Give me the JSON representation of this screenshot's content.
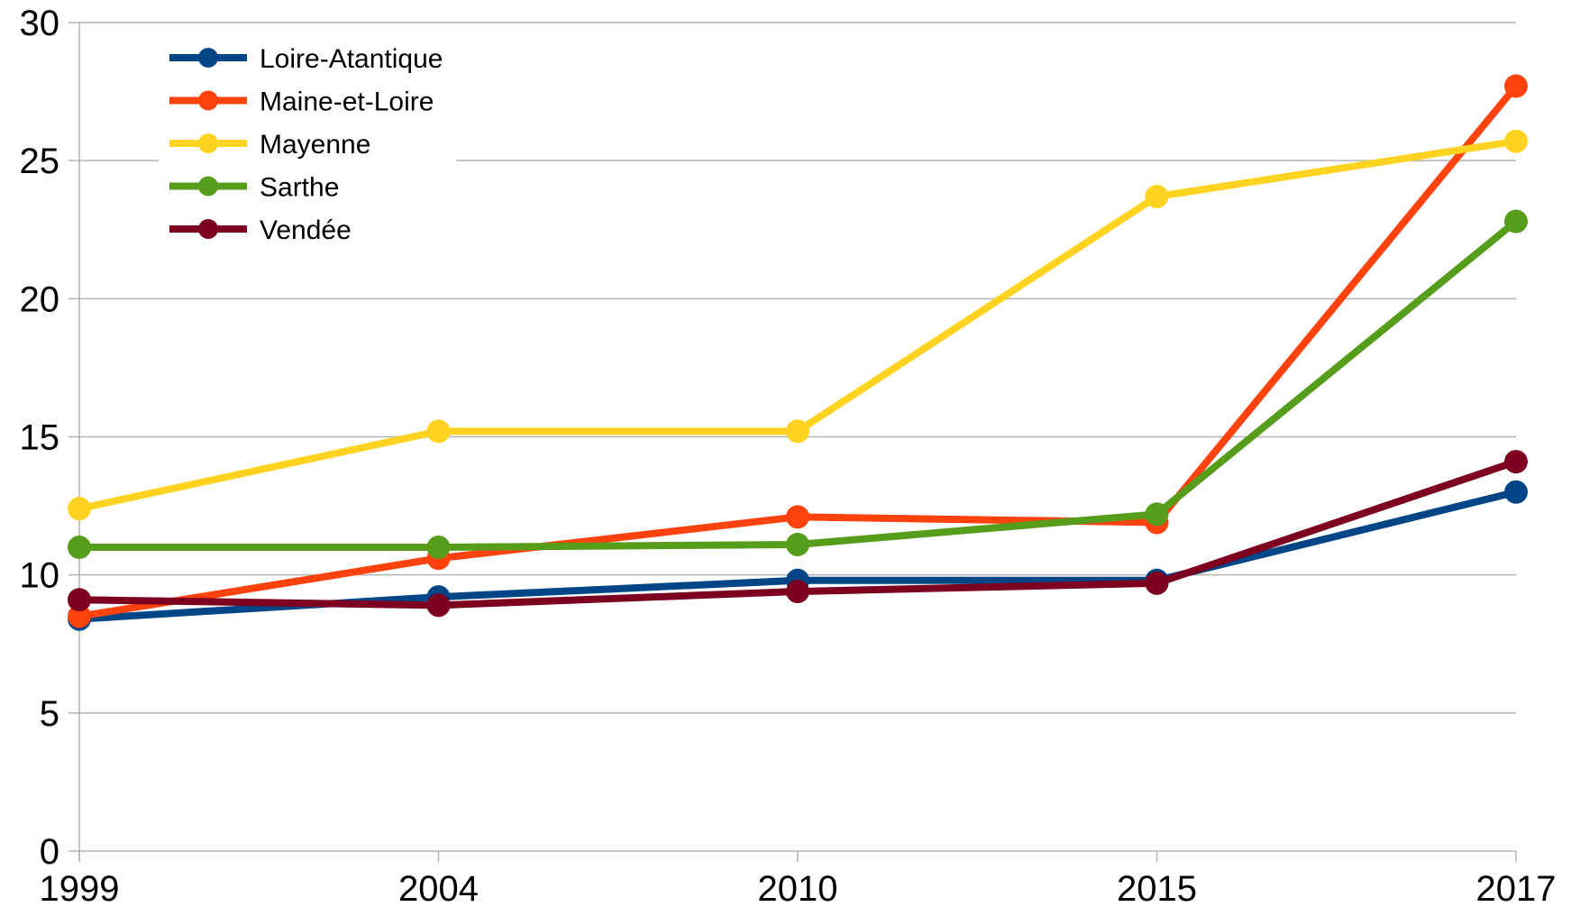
{
  "chart_data": {
    "type": "line",
    "title": "",
    "xlabel": "",
    "ylabel": "",
    "categories": [
      "1999",
      "2004",
      "2010",
      "2015",
      "2017"
    ],
    "ylim": [
      0,
      30
    ],
    "yticks": [
      0,
      5,
      10,
      15,
      20,
      25,
      30
    ],
    "grid": true,
    "legend_position": "top-left",
    "series": [
      {
        "name": "Loire-Atantique",
        "color": "#004586",
        "values": [
          8.4,
          9.2,
          9.8,
          9.8,
          13.0
        ]
      },
      {
        "name": "Maine-et-Loire",
        "color": "#ff420e",
        "values": [
          8.5,
          10.6,
          12.1,
          11.9,
          27.7
        ]
      },
      {
        "name": "Mayenne",
        "color": "#ffd320",
        "values": [
          12.4,
          15.2,
          15.2,
          23.7,
          25.7
        ]
      },
      {
        "name": "Sarthe",
        "color": "#579d1c",
        "values": [
          11.0,
          11.0,
          11.1,
          12.2,
          22.8
        ]
      },
      {
        "name": "Vendée",
        "color": "#7e0021",
        "values": [
          9.1,
          8.9,
          9.4,
          9.7,
          14.1
        ]
      }
    ]
  }
}
